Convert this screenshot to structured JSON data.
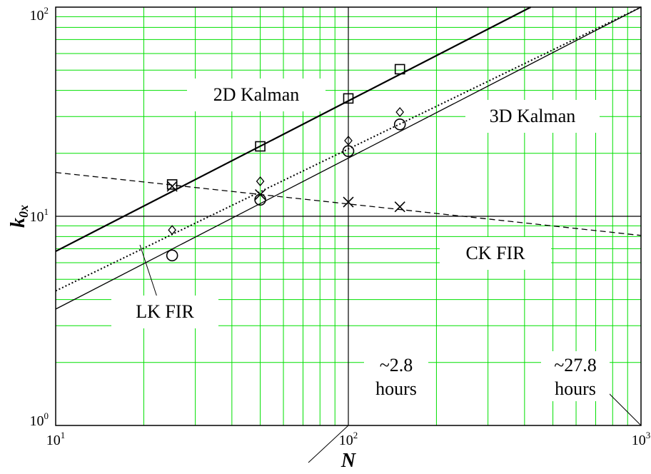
{
  "chart_data": {
    "type": "line",
    "title": "",
    "xlabel": "N",
    "ylabel": "k",
    "ylabel_sub": "0x",
    "xscale": "log",
    "yscale": "log",
    "xlim": [
      10,
      1000
    ],
    "ylim": [
      1,
      100
    ],
    "grid": true,
    "grid_color": "#00e000",
    "x_ticks": [
      {
        "base": "10",
        "exp": "1",
        "value": 10
      },
      {
        "base": "10",
        "exp": "2",
        "value": 100
      },
      {
        "base": "10",
        "exp": "3",
        "value": 1000
      }
    ],
    "y_ticks": [
      {
        "base": "10",
        "exp": "0",
        "value": 1
      },
      {
        "base": "10",
        "exp": "1",
        "value": 10
      },
      {
        "base": "10",
        "exp": "2",
        "value": 100
      }
    ],
    "series": [
      {
        "style": "solid-thick",
        "line": [
          [
            10,
            6.8
          ],
          [
            420,
            100
          ]
        ],
        "marker": "square",
        "points": [
          [
            25,
            14.2
          ],
          [
            50,
            21.6
          ],
          [
            100,
            36.6
          ],
          [
            150,
            50.5
          ]
        ]
      },
      {
        "style": "dotted",
        "line": [
          [
            10,
            4.4
          ],
          [
            1000,
            100
          ]
        ],
        "marker": "diamond",
        "points": [
          [
            25,
            8.6
          ],
          [
            50,
            14.7
          ],
          [
            100,
            23.0
          ],
          [
            150,
            31.5
          ]
        ]
      },
      {
        "style": "solid-thin",
        "line": [
          [
            10,
            3.6
          ],
          [
            1000,
            100
          ]
        ],
        "marker": "circle",
        "points": [
          [
            25,
            6.5
          ],
          [
            50,
            12.0
          ],
          [
            100,
            20.5
          ],
          [
            150,
            27.5
          ]
        ]
      },
      {
        "style": "dashed",
        "line": [
          [
            10,
            16.2
          ],
          [
            1000,
            8.1
          ]
        ],
        "marker": "x",
        "points": [
          [
            25,
            13.9
          ],
          [
            50,
            12.7
          ],
          [
            100,
            11.7
          ],
          [
            150,
            11.1
          ]
        ]
      }
    ],
    "annotations": [
      {
        "text": "2D Kalman"
      },
      {
        "text": "3D Kalman"
      },
      {
        "text": "CK FIR"
      },
      {
        "text": "LK FIR"
      },
      {
        "text": "~2.8",
        "text2": "hours"
      },
      {
        "text": "~27.8",
        "text2": "hours"
      }
    ]
  }
}
